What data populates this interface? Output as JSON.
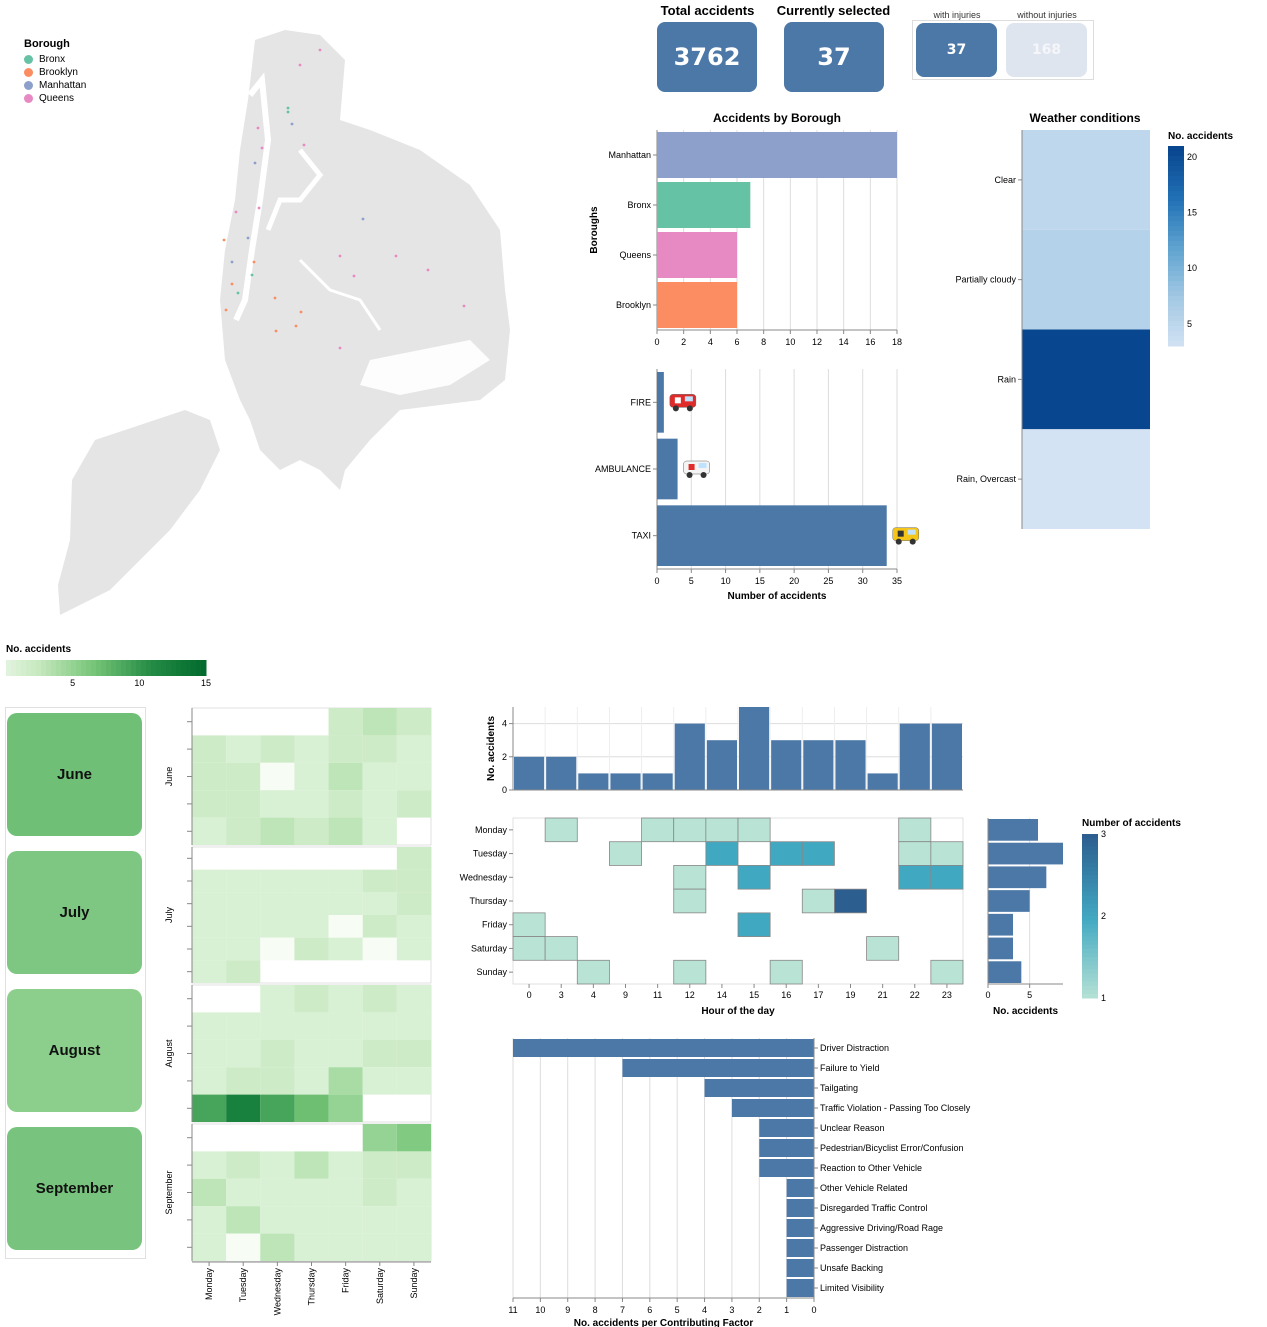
{
  "kpis": {
    "total_label": "Total accidents",
    "total_value": "3762",
    "selected_label": "Currently selected",
    "selected_value": "37",
    "with_injuries_label": "with injuries",
    "without_injuries_label": "without injuries",
    "with_injuries_value": "37",
    "without_injuries_value": "168"
  },
  "map": {
    "legend_title": "Borough",
    "boroughs": [
      {
        "name": "Bronx",
        "color": "#66c2a5"
      },
      {
        "name": "Brooklyn",
        "color": "#fc8d62"
      },
      {
        "name": "Manhattan",
        "color": "#8da0cb"
      },
      {
        "name": "Queens",
        "color": "#e78ac3"
      }
    ]
  },
  "months": {
    "buttons": [
      {
        "label": "June",
        "color": "#6fc076"
      },
      {
        "label": "July",
        "color": "#7dc782"
      },
      {
        "label": "August",
        "color": "#8ccf8c"
      },
      {
        "label": "September",
        "color": "#78c47e"
      }
    ]
  },
  "chart_data": [
    {
      "id": "borough",
      "type": "bar",
      "title": "Accidents by Borough",
      "ylabel": "Boroughs",
      "categories": [
        "Manhattan",
        "Bronx",
        "Queens",
        "Brooklyn"
      ],
      "values": [
        18,
        7,
        6,
        6
      ],
      "colors": [
        "#8da0cb",
        "#66c2a5",
        "#e78ac3",
        "#fc8d62"
      ],
      "xlim": [
        0,
        18
      ],
      "xticks": [
        0,
        2,
        4,
        6,
        8,
        10,
        12,
        14,
        16,
        18
      ],
      "grid": true
    },
    {
      "id": "vehicle",
      "type": "bar",
      "xlabel": "Number of accidents",
      "categories": [
        "FIRE",
        "AMBULANCE",
        "TAXI"
      ],
      "values": [
        1,
        3,
        33.5
      ],
      "icons": [
        "fire-truck-icon",
        "ambulance-icon",
        "taxi-icon"
      ],
      "xlim": [
        0,
        35
      ],
      "xticks": [
        0,
        5,
        10,
        15,
        20,
        25,
        30,
        35
      ],
      "color": "#4c78a8",
      "grid": true
    },
    {
      "id": "weather",
      "type": "heatmap",
      "title": "Weather conditions",
      "legend_title": "No. accidents",
      "categories": [
        "Clear",
        "Partially cloudy",
        "Rain",
        "Rain, Overcast"
      ],
      "values": [
        5,
        6,
        21,
        3
      ],
      "legend_ticks": [
        5,
        10,
        15,
        20
      ],
      "domain": [
        3,
        21
      ]
    },
    {
      "id": "calendar",
      "type": "heatmap",
      "legend_title": "No. accidents",
      "legend_ticks": [
        5,
        10,
        15
      ],
      "domain": [
        0,
        15
      ],
      "days": [
        "Monday",
        "Tuesday",
        "Wednesday",
        "Thursday",
        "Friday",
        "Saturday",
        "Sunday"
      ],
      "months": [
        {
          "name": "June",
          "weeks": [
            [
              null,
              null,
              null,
              null,
              2,
              3,
              2
            ],
            [
              2,
              1,
              2,
              1,
              2,
              2,
              1
            ],
            [
              2,
              2,
              0,
              1,
              3,
              1,
              1
            ],
            [
              2,
              2,
              1,
              1,
              2,
              1,
              2
            ],
            [
              1,
              2,
              3,
              2,
              3,
              1,
              null
            ]
          ]
        },
        {
          "name": "July",
          "weeks": [
            [
              null,
              null,
              null,
              null,
              null,
              null,
              2
            ],
            [
              1,
              1,
              1,
              1,
              1,
              2,
              2
            ],
            [
              1,
              1,
              1,
              1,
              1,
              1,
              2
            ],
            [
              1,
              1,
              1,
              1,
              0,
              2,
              1
            ],
            [
              1,
              1,
              0,
              2,
              1,
              0,
              1
            ],
            [
              1,
              2,
              null,
              null,
              null,
              null,
              null
            ]
          ]
        },
        {
          "name": "August",
          "weeks": [
            [
              null,
              null,
              1,
              2,
              1,
              2,
              1
            ],
            [
              1,
              1,
              1,
              1,
              1,
              1,
              1
            ],
            [
              1,
              1,
              2,
              1,
              1,
              2,
              2
            ],
            [
              1,
              2,
              2,
              1,
              4,
              1,
              1
            ],
            [
              9,
              12,
              9,
              7,
              5,
              null,
              null
            ]
          ]
        },
        {
          "name": "September",
          "weeks": [
            [
              null,
              null,
              null,
              null,
              null,
              5,
              6
            ],
            [
              1,
              2,
              1,
              3,
              1,
              2,
              2
            ],
            [
              3,
              1,
              1,
              1,
              1,
              2,
              1
            ],
            [
              1,
              3,
              1,
              1,
              1,
              1,
              1
            ],
            [
              1,
              0,
              3,
              1,
              1,
              1,
              1
            ]
          ]
        }
      ]
    },
    {
      "id": "hourly",
      "type": "bar",
      "ylabel": "No. accidents",
      "categories": [
        "0",
        "3",
        "4",
        "9",
        "11",
        "12",
        "14",
        "15",
        "16",
        "17",
        "19",
        "21",
        "22",
        "23"
      ],
      "values": [
        2,
        2,
        1,
        1,
        1,
        4,
        3,
        5,
        3,
        3,
        3,
        1,
        4,
        4
      ],
      "ylim": [
        0,
        5
      ],
      "yticks": [
        0,
        2,
        4
      ],
      "color": "#4c78a8",
      "grid": true
    },
    {
      "id": "hour_day",
      "type": "heatmap",
      "xlabel": "Hour of the day",
      "legend_title": "Number of accidents",
      "legend_ticks": [
        1,
        2,
        3
      ],
      "domain": [
        1,
        3
      ],
      "x": [
        "0",
        "3",
        "4",
        "9",
        "11",
        "12",
        "14",
        "15",
        "16",
        "17",
        "19",
        "21",
        "22",
        "23"
      ],
      "y": [
        "Monday",
        "Tuesday",
        "Wednesday",
        "Thursday",
        "Friday",
        "Saturday",
        "Sunday"
      ],
      "cells": [
        [
          "Monday",
          "3",
          1
        ],
        [
          "Monday",
          "11",
          1
        ],
        [
          "Monday",
          "12",
          1
        ],
        [
          "Monday",
          "14",
          1
        ],
        [
          "Monday",
          "15",
          1
        ],
        [
          "Monday",
          "22",
          1
        ],
        [
          "Tuesday",
          "9",
          1
        ],
        [
          "Tuesday",
          "14",
          2
        ],
        [
          "Tuesday",
          "16",
          2
        ],
        [
          "Tuesday",
          "17",
          2
        ],
        [
          "Tuesday",
          "22",
          1
        ],
        [
          "Tuesday",
          "23",
          1
        ],
        [
          "Wednesday",
          "12",
          1
        ],
        [
          "Wednesday",
          "15",
          2
        ],
        [
          "Wednesday",
          "22",
          2
        ],
        [
          "Wednesday",
          "23",
          2
        ],
        [
          "Thursday",
          "12",
          1
        ],
        [
          "Thursday",
          "17",
          1
        ],
        [
          "Thursday",
          "19",
          3
        ],
        [
          "Friday",
          "0",
          1
        ],
        [
          "Friday",
          "15",
          2
        ],
        [
          "Saturday",
          "0",
          1
        ],
        [
          "Saturday",
          "3",
          1
        ],
        [
          "Saturday",
          "21",
          1
        ],
        [
          "Sunday",
          "4",
          1
        ],
        [
          "Sunday",
          "12",
          1
        ],
        [
          "Sunday",
          "16",
          1
        ],
        [
          "Sunday",
          "23",
          1
        ]
      ]
    },
    {
      "id": "weekday",
      "type": "bar",
      "xlabel": "No. accidents",
      "categories": [
        "Monday",
        "Tuesday",
        "Wednesday",
        "Thursday",
        "Friday",
        "Saturday",
        "Sunday"
      ],
      "values": [
        6,
        9,
        7,
        5,
        3,
        3,
        4
      ],
      "xlim": [
        0,
        9
      ],
      "xticks": [
        0,
        5
      ],
      "color": "#4c78a8",
      "grid": true
    },
    {
      "id": "factors",
      "type": "bar",
      "xlabel": "No. accidents per Contributing Factor",
      "categories": [
        "Driver Distraction",
        "Failure to Yield",
        "Tailgating",
        "Traffic Violation - Passing Too Closely",
        "Unclear Reason",
        "Pedestrian/Bicyclist Error/Confusion",
        "Reaction to Other Vehicle",
        "Other Vehicle Related",
        "Disregarded Traffic Control",
        "Aggressive Driving/Road Rage",
        "Passenger Distraction",
        "Unsafe Backing",
        "Limited Visibility"
      ],
      "values": [
        11,
        7,
        4,
        3,
        2,
        2,
        2,
        1,
        1,
        1,
        1,
        1,
        1
      ],
      "xlim": [
        0,
        11
      ],
      "xticks": [
        11,
        10,
        9,
        8,
        7,
        6,
        5,
        4,
        3,
        2,
        1,
        0
      ],
      "color": "#4c78a8",
      "grid": true
    }
  ]
}
